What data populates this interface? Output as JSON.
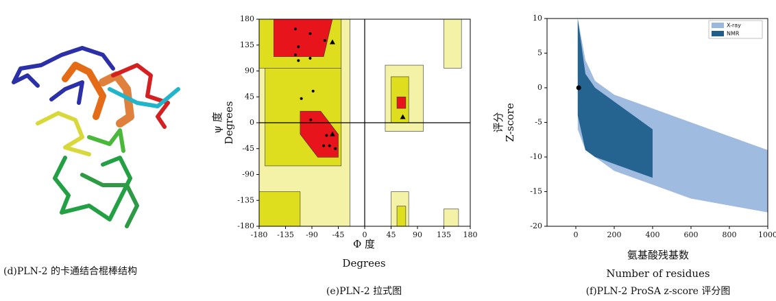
{
  "structure_panel": {
    "caption": "(d)PLN-2 的卡通结合棍棒结构"
  },
  "chart_data": [
    {
      "type": "ramachandran",
      "caption": "(e)PLN-2 拉式图",
      "xlabel": "Φ 度",
      "xlabel2": "Degrees",
      "ylabel": "ψ 度",
      "ylabel2": "Degrees",
      "xlim": [
        -180,
        180
      ],
      "ylim": [
        -180,
        180
      ],
      "xticks": [
        -180,
        -135,
        -90,
        -45,
        0,
        45,
        90,
        135,
        180
      ],
      "yticks": [
        -180,
        -135,
        -90,
        -45,
        0,
        45,
        90,
        135,
        180
      ],
      "regions": [
        {
          "color": "#f4f2a6",
          "x": [
            -180,
            -25,
            -25,
            -180
          ],
          "y": [
            180,
            180,
            -180,
            -180
          ]
        },
        {
          "color": "#f4f2a6",
          "x": [
            35,
            100,
            100,
            35
          ],
          "y": [
            100,
            100,
            -15,
            -15
          ]
        },
        {
          "color": "#f4f2a6",
          "x": [
            45,
            75,
            75,
            45
          ],
          "y": [
            -120,
            -120,
            -180,
            -180
          ]
        },
        {
          "color": "#f4f2a6",
          "x": [
            135,
            165,
            165,
            135
          ],
          "y": [
            180,
            180,
            95,
            95
          ]
        },
        {
          "color": "#f4f2a6",
          "x": [
            135,
            160,
            160,
            135
          ],
          "y": [
            -150,
            -150,
            -180,
            -180
          ]
        },
        {
          "color": "#dedd1e",
          "x": [
            -180,
            -40,
            -40,
            -180
          ],
          "y": [
            180,
            180,
            95,
            95
          ]
        },
        {
          "color": "#dedd1e",
          "x": [
            -170,
            -40,
            -40,
            -170
          ],
          "y": [
            95,
            95,
            -75,
            -75
          ]
        },
        {
          "color": "#dedd1e",
          "x": [
            -180,
            -110,
            -110,
            -180
          ],
          "y": [
            -120,
            -120,
            -180,
            -180
          ]
        },
        {
          "color": "#dedd1e",
          "x": [
            45,
            75,
            75,
            45
          ],
          "y": [
            80,
            80,
            0,
            0
          ]
        },
        {
          "color": "#dedd1e",
          "x": [
            55,
            70,
            70,
            55
          ],
          "y": [
            -145,
            -145,
            -180,
            -180
          ]
        },
        {
          "color": "#e8141c",
          "x": [
            -155,
            -55,
            -70,
            -155
          ],
          "y": [
            180,
            180,
            115,
            115
          ]
        },
        {
          "color": "#e8141c",
          "x": [
            -110,
            -75,
            -45,
            -45,
            -80,
            -110
          ],
          "y": [
            20,
            20,
            -20,
            -60,
            -60,
            -20
          ]
        },
        {
          "color": "#e8141c",
          "x": [
            55,
            70,
            70,
            55
          ],
          "y": [
            45,
            45,
            25,
            25
          ]
        }
      ],
      "x": [
        -118,
        -93,
        -113,
        -118,
        -113,
        -93,
        -68,
        -55,
        -88,
        -108,
        -92,
        -65,
        -55,
        -70,
        -60,
        -50,
        65
      ],
      "values": [
        163,
        155,
        132,
        118,
        108,
        112,
        143,
        140,
        55,
        42,
        5,
        -22,
        -20,
        -40,
        -40,
        -45,
        10
      ],
      "markers": [
        "circle",
        "circle",
        "circle",
        "circle",
        "circle",
        "circle",
        "circle",
        "triangle",
        "circle",
        "circle",
        "circle",
        "circle",
        "triangle",
        "circle",
        "circle",
        "circle",
        "triangle"
      ],
      "color": "#000000"
    },
    {
      "type": "band-scatter",
      "caption": "(f)PLN-2 ProSA z-score 评分图",
      "xlabel": "氨基酸残基数",
      "xlabel2": "Number of residues",
      "ylabel": "评分",
      "ylabel2": "Z-score",
      "xlim": [
        -150,
        1000
      ],
      "ylim": [
        -20,
        10
      ],
      "xticks": [
        0,
        200,
        400,
        600,
        800,
        1000
      ],
      "yticks": [
        -20,
        -15,
        -10,
        -5,
        0,
        5,
        10
      ],
      "legend": "upper-right",
      "series": [
        {
          "name": "X-ray",
          "color": "#9ab7dd",
          "x": [
            10,
            50,
            100,
            200,
            400,
            600,
            800,
            1000
          ],
          "upper": [
            10,
            4,
            1,
            -1,
            -3,
            -5,
            -7,
            -9
          ],
          "lower": [
            -6,
            -9,
            -10,
            -12,
            -14,
            -16,
            -17,
            -18
          ]
        },
        {
          "name": "NMR",
          "color": "#1f5e8c",
          "x": [
            10,
            50,
            100,
            200,
            300,
            400
          ],
          "upper": [
            10,
            2,
            0,
            -2,
            -4,
            -6
          ],
          "lower": [
            -4,
            -9,
            -10,
            -11,
            -12,
            -13
          ]
        }
      ],
      "highlight": {
        "x": 15,
        "y": 0,
        "color": "#000000"
      }
    }
  ]
}
